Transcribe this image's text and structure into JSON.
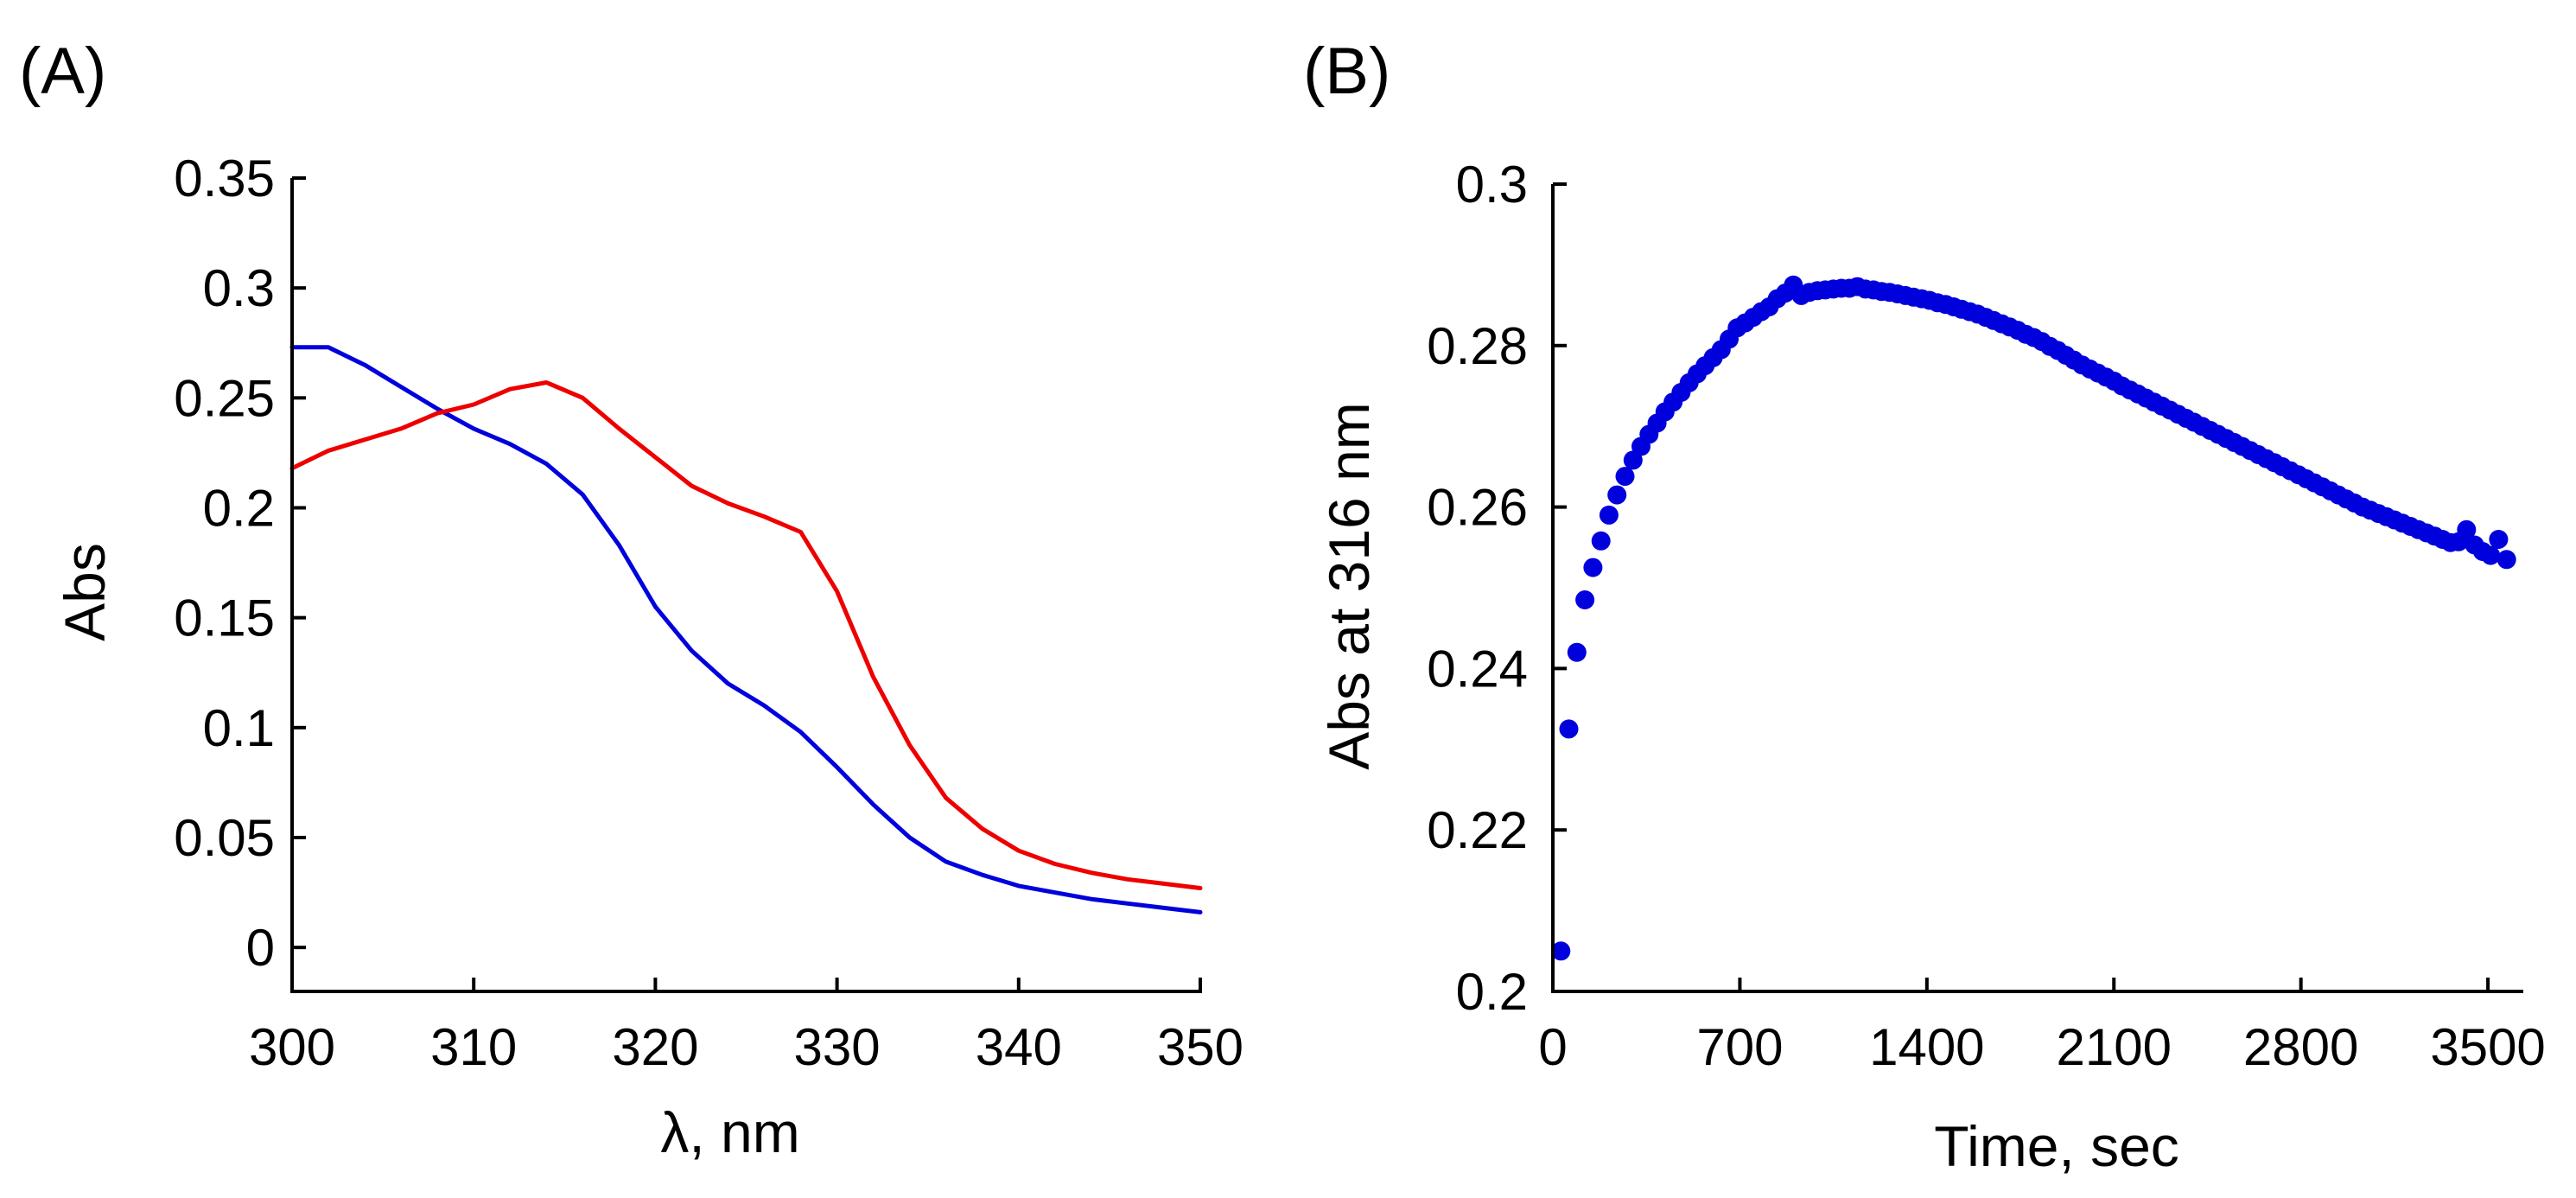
{
  "chart_data": [
    {
      "type": "line",
      "panel_label": "(A)",
      "title": "",
      "xlabel": "λ, nm",
      "ylabel": "Abs",
      "xlim": [
        300,
        350
      ],
      "ylim": [
        -0.02,
        0.35
      ],
      "grid": false,
      "legend": "none",
      "x_ticks": [
        "300",
        "310",
        "320",
        "330",
        "340",
        "350"
      ],
      "y_ticks": [
        "0",
        "0.05",
        "0.1",
        "0.15",
        "0.2",
        "0.25",
        "0.3",
        "0.35"
      ],
      "series": [
        {
          "color": "#0000dd",
          "x": [
            300,
            302,
            304,
            306,
            308,
            310,
            312,
            314,
            316,
            318,
            320,
            322,
            324,
            326,
            328,
            330,
            332,
            334,
            336,
            338,
            340,
            342,
            344,
            346,
            348,
            350
          ],
          "y": [
            0.273,
            0.273,
            0.265,
            0.255,
            0.245,
            0.236,
            0.229,
            0.22,
            0.206,
            0.183,
            0.155,
            0.135,
            0.12,
            0.11,
            0.098,
            0.082,
            0.065,
            0.05,
            0.039,
            0.033,
            0.028,
            0.025,
            0.022,
            0.02,
            0.018,
            0.016
          ]
        },
        {
          "color": "#ee0000",
          "x": [
            300,
            302,
            304,
            306,
            308,
            310,
            312,
            314,
            316,
            318,
            320,
            322,
            324,
            326,
            328,
            330,
            332,
            334,
            336,
            338,
            340,
            342,
            344,
            346,
            348,
            350
          ],
          "y": [
            0.218,
            0.226,
            0.231,
            0.236,
            0.243,
            0.247,
            0.254,
            0.257,
            0.25,
            0.236,
            0.223,
            0.21,
            0.202,
            0.196,
            0.189,
            0.162,
            0.123,
            0.092,
            0.068,
            0.054,
            0.044,
            0.038,
            0.034,
            0.031,
            0.029,
            0.027
          ]
        }
      ]
    },
    {
      "type": "scatter",
      "panel_label": "(B)",
      "title": "",
      "xlabel": "Time, sec",
      "ylabel": "Abs at 316 nm",
      "xlim": [
        0,
        3600
      ],
      "ylim": [
        0.2,
        0.3
      ],
      "grid": false,
      "legend": "none",
      "x_ticks": [
        "0",
        "700",
        "1400",
        "2100",
        "2800",
        "3500"
      ],
      "y_ticks": [
        "0.2",
        "0.22",
        "0.24",
        "0.26",
        "0.28",
        "0.3"
      ],
      "series": [
        {
          "color": "#0000dd",
          "x": [
            30,
            60,
            90,
            120,
            150,
            180,
            210,
            240,
            270,
            300,
            330,
            360,
            390,
            420,
            450,
            480,
            510,
            540,
            570,
            600,
            630,
            660,
            690,
            720,
            750,
            780,
            810,
            840,
            870,
            900,
            930,
            960,
            990,
            1020,
            1050,
            1080,
            1110,
            1140,
            1170,
            1200,
            1230,
            1260,
            1290,
            1320,
            1350,
            1380,
            1410,
            1440,
            1470,
            1500,
            1530,
            1560,
            1590,
            1620,
            1650,
            1680,
            1710,
            1740,
            1770,
            1800,
            1830,
            1860,
            1890,
            1920,
            1950,
            1980,
            2010,
            2040,
            2070,
            2100,
            2130,
            2160,
            2190,
            2220,
            2250,
            2280,
            2310,
            2340,
            2370,
            2400,
            2430,
            2460,
            2490,
            2520,
            2550,
            2580,
            2610,
            2640,
            2670,
            2700,
            2730,
            2760,
            2790,
            2820,
            2850,
            2880,
            2910,
            2940,
            2970,
            3000,
            3030,
            3060,
            3090,
            3120,
            3150,
            3180,
            3210,
            3240,
            3270,
            3300,
            3330,
            3360,
            3390,
            3420,
            3450,
            3480,
            3510,
            3540,
            3570
          ],
          "y": [
            0.205,
            0.2325,
            0.242,
            0.2485,
            0.2525,
            0.2558,
            0.259,
            0.2615,
            0.2638,
            0.2658,
            0.2675,
            0.269,
            0.2704,
            0.2718,
            0.273,
            0.2742,
            0.2754,
            0.2765,
            0.2775,
            0.2785,
            0.2795,
            0.2808,
            0.2822,
            0.2828,
            0.2835,
            0.2842,
            0.2848,
            0.2858,
            0.2865,
            0.2875,
            0.2862,
            0.2866,
            0.2868,
            0.2869,
            0.287,
            0.2871,
            0.2871,
            0.2873,
            0.287,
            0.2869,
            0.2867,
            0.2866,
            0.2864,
            0.2862,
            0.286,
            0.2858,
            0.2856,
            0.2853,
            0.2851,
            0.2848,
            0.2845,
            0.2842,
            0.2839,
            0.2835,
            0.2831,
            0.2827,
            0.2823,
            0.2819,
            0.2814,
            0.281,
            0.2805,
            0.2799,
            0.2794,
            0.2788,
            0.2782,
            0.2776,
            0.2771,
            0.2766,
            0.2761,
            0.2756,
            0.275,
            0.2745,
            0.274,
            0.2735,
            0.273,
            0.2725,
            0.272,
            0.2715,
            0.271,
            0.2705,
            0.27,
            0.2695,
            0.269,
            0.2685,
            0.268,
            0.2675,
            0.267,
            0.2665,
            0.266,
            0.2655,
            0.265,
            0.2645,
            0.264,
            0.2635,
            0.263,
            0.2625,
            0.262,
            0.2615,
            0.261,
            0.2605,
            0.26,
            0.2596,
            0.2592,
            0.2588,
            0.2584,
            0.258,
            0.2576,
            0.2572,
            0.2568,
            0.2564,
            0.256,
            0.2556,
            0.2557,
            0.2572,
            0.2553,
            0.2545,
            0.254,
            0.256,
            0.2535
          ]
        }
      ]
    }
  ]
}
